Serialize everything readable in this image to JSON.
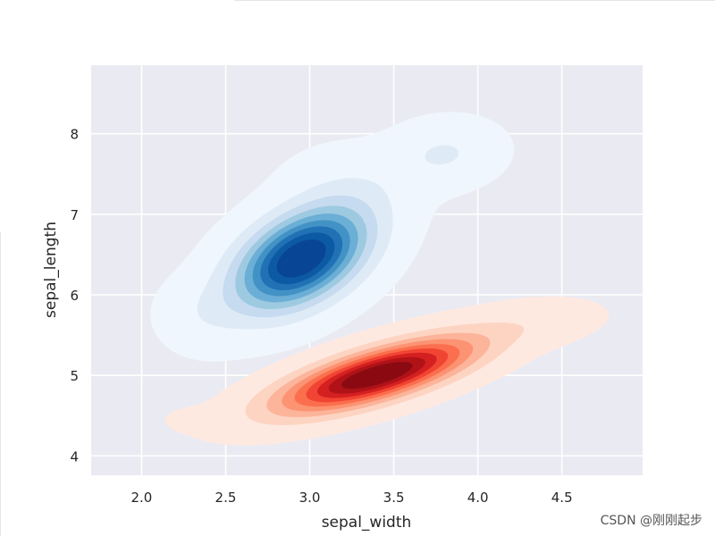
{
  "chart_data": {
    "type": "contour",
    "title": "",
    "xlabel": "sepal_width",
    "ylabel": "sepal_length",
    "xlim": [
      1.7,
      4.98
    ],
    "ylim": [
      3.76,
      8.85
    ],
    "xticks": [
      "2.0",
      "2.5",
      "3.0",
      "3.5",
      "4.0",
      "4.5"
    ],
    "yticks": [
      "4",
      "5",
      "6",
      "7",
      "8"
    ],
    "grid": true,
    "legend": "none",
    "series": [
      {
        "colormap": "Blues",
        "shades": [
          "#eff6fd",
          "#deebf7",
          "#c6dbef",
          "#9ecae1",
          "#6baed6",
          "#4292c6",
          "#2171b5",
          "#0c5aa4",
          "#084594"
        ],
        "components": [
          {
            "cx": 2.95,
            "cy": 6.45,
            "sx": 0.26,
            "sy": 0.42,
            "rho": 0.45,
            "weight": 1.0
          },
          {
            "cx": 3.8,
            "cy": 7.75,
            "sx": 0.2,
            "sy": 0.25,
            "rho": 0.1,
            "weight": 0.13
          },
          {
            "cx": 2.35,
            "cy": 5.75,
            "sx": 0.16,
            "sy": 0.28,
            "rho": 0.0,
            "weight": 0.07
          },
          {
            "cx": 3.25,
            "cy": 7.4,
            "sx": 0.25,
            "sy": 0.3,
            "rho": 0.0,
            "weight": 0.06
          }
        ]
      },
      {
        "colormap": "Reds",
        "shades": [
          "#fee9e1",
          "#fdd4c2",
          "#fcb49a",
          "#fc9372",
          "#fb6e4e",
          "#f14432",
          "#d42020",
          "#b01217",
          "#8b0a12"
        ],
        "components": [
          {
            "cx": 3.4,
            "cy": 5.0,
            "sx": 0.38,
            "sy": 0.3,
            "rho": 0.72,
            "weight": 1.0
          },
          {
            "cx": 4.35,
            "cy": 5.65,
            "sx": 0.25,
            "sy": 0.18,
            "rho": 0.3,
            "weight": 0.06
          },
          {
            "cx": 2.3,
            "cy": 4.45,
            "sx": 0.12,
            "sy": 0.1,
            "rho": 0.0,
            "weight": 0.03
          }
        ]
      }
    ]
  },
  "watermark": "CSDN @刚刚起步"
}
